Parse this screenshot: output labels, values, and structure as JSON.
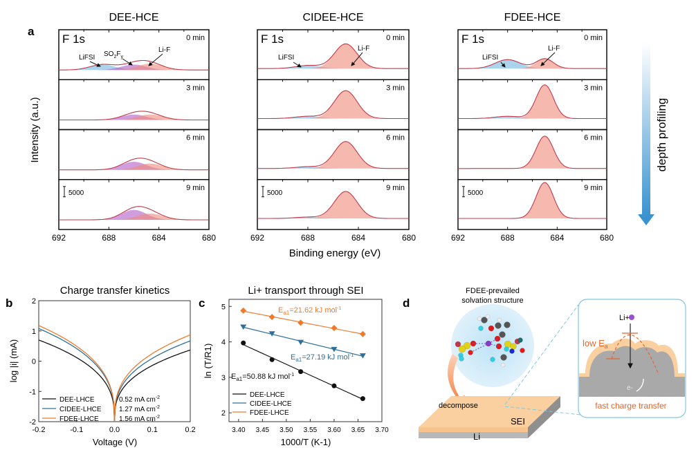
{
  "chart_data": [
    {
      "panel": "a",
      "type": "area",
      "title": "F 1s XPS depth profiling",
      "xlabel": "Binding energy (eV)",
      "ylabel": "Intensity (a.u.)",
      "xlim": [
        692,
        680
      ],
      "xticks": [
        "692",
        "688",
        "684",
        "680"
      ],
      "core_level": "F 1s",
      "scale_bar": "5000",
      "depth_label": "depth profiling",
      "times": [
        "0 min",
        "3 min",
        "6 min",
        "9 min"
      ],
      "electrolytes": [
        {
          "name": "DEE-HCE",
          "labels": [
            "LiFSI",
            "SO2Fy",
            "Li-F"
          ],
          "components": [
            {
              "name": "LiFSI",
              "center": 688.5,
              "color": "#6fb8e0",
              "amps": [
                0.12,
                0.0,
                0.0,
                0.0
              ]
            },
            {
              "name": "SO2Fy",
              "center": 686.0,
              "color": "#b05cc8",
              "amps": [
                0.12,
                0.12,
                0.18,
                0.22
              ]
            },
            {
              "name": "Li-F",
              "center": 684.7,
              "color": "#f08a7a",
              "amps": [
                0.14,
                0.12,
                0.14,
                0.14
              ]
            }
          ]
        },
        {
          "name": "CIDEE-HCE",
          "labels": [
            "LiFSI",
            "Li-F"
          ],
          "components": [
            {
              "name": "LiFSI",
              "center": 688.0,
              "color": "#6fb8e0",
              "amps": [
                0.07,
                0.05,
                0.04,
                0.03
              ]
            },
            {
              "name": "Li-F",
              "center": 685.0,
              "color": "#f08a7a",
              "amps": [
                0.55,
                0.62,
                0.6,
                0.6
              ]
            }
          ]
        },
        {
          "name": "FDEE-HCE",
          "labels": [
            "LiFSI",
            "Li-F"
          ],
          "components": [
            {
              "name": "LiFSI",
              "center": 688.0,
              "color": "#6fb8e0",
              "amps": [
                0.2,
                0.05,
                0.0,
                0.0
              ]
            },
            {
              "name": "Li-F",
              "center": 685.0,
              "color": "#f08a7a",
              "amps": [
                0.22,
                0.75,
                0.72,
                0.8
              ]
            }
          ]
        }
      ]
    },
    {
      "panel": "b",
      "type": "line",
      "title": "Charge transfer kinetics",
      "xlabel": "Voltage (V)",
      "ylabel": "log |i| (mA)",
      "xlim": [
        -0.2,
        0.2
      ],
      "ylim": [
        -2,
        2
      ],
      "xticks": [
        "-0.2",
        "-0.1",
        "0.0",
        "0.1",
        "0.2"
      ],
      "yticks": [
        "-2",
        "-1",
        "0",
        "1",
        "2"
      ],
      "series": [
        {
          "name": "DEE-LHCE",
          "color": "#111111",
          "exchange_current": "0.52 mA cm-2",
          "log_i0": -0.28
        },
        {
          "name": "CIDEE-LHCE",
          "color": "#2f6f99",
          "exchange_current": "1.27 mA cm-2",
          "log_i0": 0.1
        },
        {
          "name": "FDEE-LHCE",
          "color": "#f07a2a",
          "exchange_current": "1.56 mA cm-2",
          "log_i0": 0.19
        }
      ],
      "endpoints": {
        "DEE-LHCE": {
          "left": 0.7,
          "right": 0.37
        },
        "CIDEE-LHCE": {
          "left": 1.08,
          "right": 0.67
        },
        "FDEE-LHCE": {
          "left": 1.18,
          "right": 0.87
        }
      },
      "legend": "bottom-left"
    },
    {
      "panel": "c",
      "type": "scatter",
      "title": "Li+ transport through SEI",
      "xlabel": "1000/T (K-1)",
      "ylabel": "ln (T/R1)",
      "xlim": [
        3.38,
        3.7
      ],
      "ylim": [
        1.75,
        5.2
      ],
      "xticks": [
        "3.40",
        "3.45",
        "3.50",
        "3.55",
        "3.60",
        "3.65",
        "3.70"
      ],
      "yticks": [
        "2",
        "3",
        "4",
        "5"
      ],
      "x": [
        3.41,
        3.47,
        3.53,
        3.6,
        3.66
      ],
      "series": [
        {
          "name": "DEE-LHCE",
          "color": "#111111",
          "marker": "circle",
          "values": [
            3.97,
            3.5,
            3.16,
            2.76,
            2.4
          ],
          "annotation": "Ea1=50.88 kJ mol-1"
        },
        {
          "name": "CIDEE-LHCE",
          "color": "#2f6f99",
          "marker": "triangle-down",
          "values": [
            4.42,
            4.23,
            3.99,
            3.79,
            3.61
          ],
          "annotation": "Ea1=27.19 kJ mol-1"
        },
        {
          "name": "FDEE-LHCE",
          "color": "#f07a2a",
          "marker": "diamond",
          "values": [
            4.88,
            4.7,
            4.54,
            4.39,
            4.22
          ],
          "annotation": "Ea1=21.62 kJ mol-1"
        }
      ],
      "legend": "bottom-left"
    }
  ],
  "panel_letters": [
    "a",
    "b",
    "c",
    "d"
  ],
  "schematic": {
    "panel": "d",
    "solvation_title_1": "FDEE-prevailed",
    "solvation_title_2": "solvation structure",
    "decompose": "decompose",
    "sei": "SEI",
    "li": "Li",
    "li_ion": "Li+",
    "low_ea": "low E",
    "low_ea_sub": "a",
    "electron": "e-",
    "fast_transfer": "fast charge transfer"
  }
}
